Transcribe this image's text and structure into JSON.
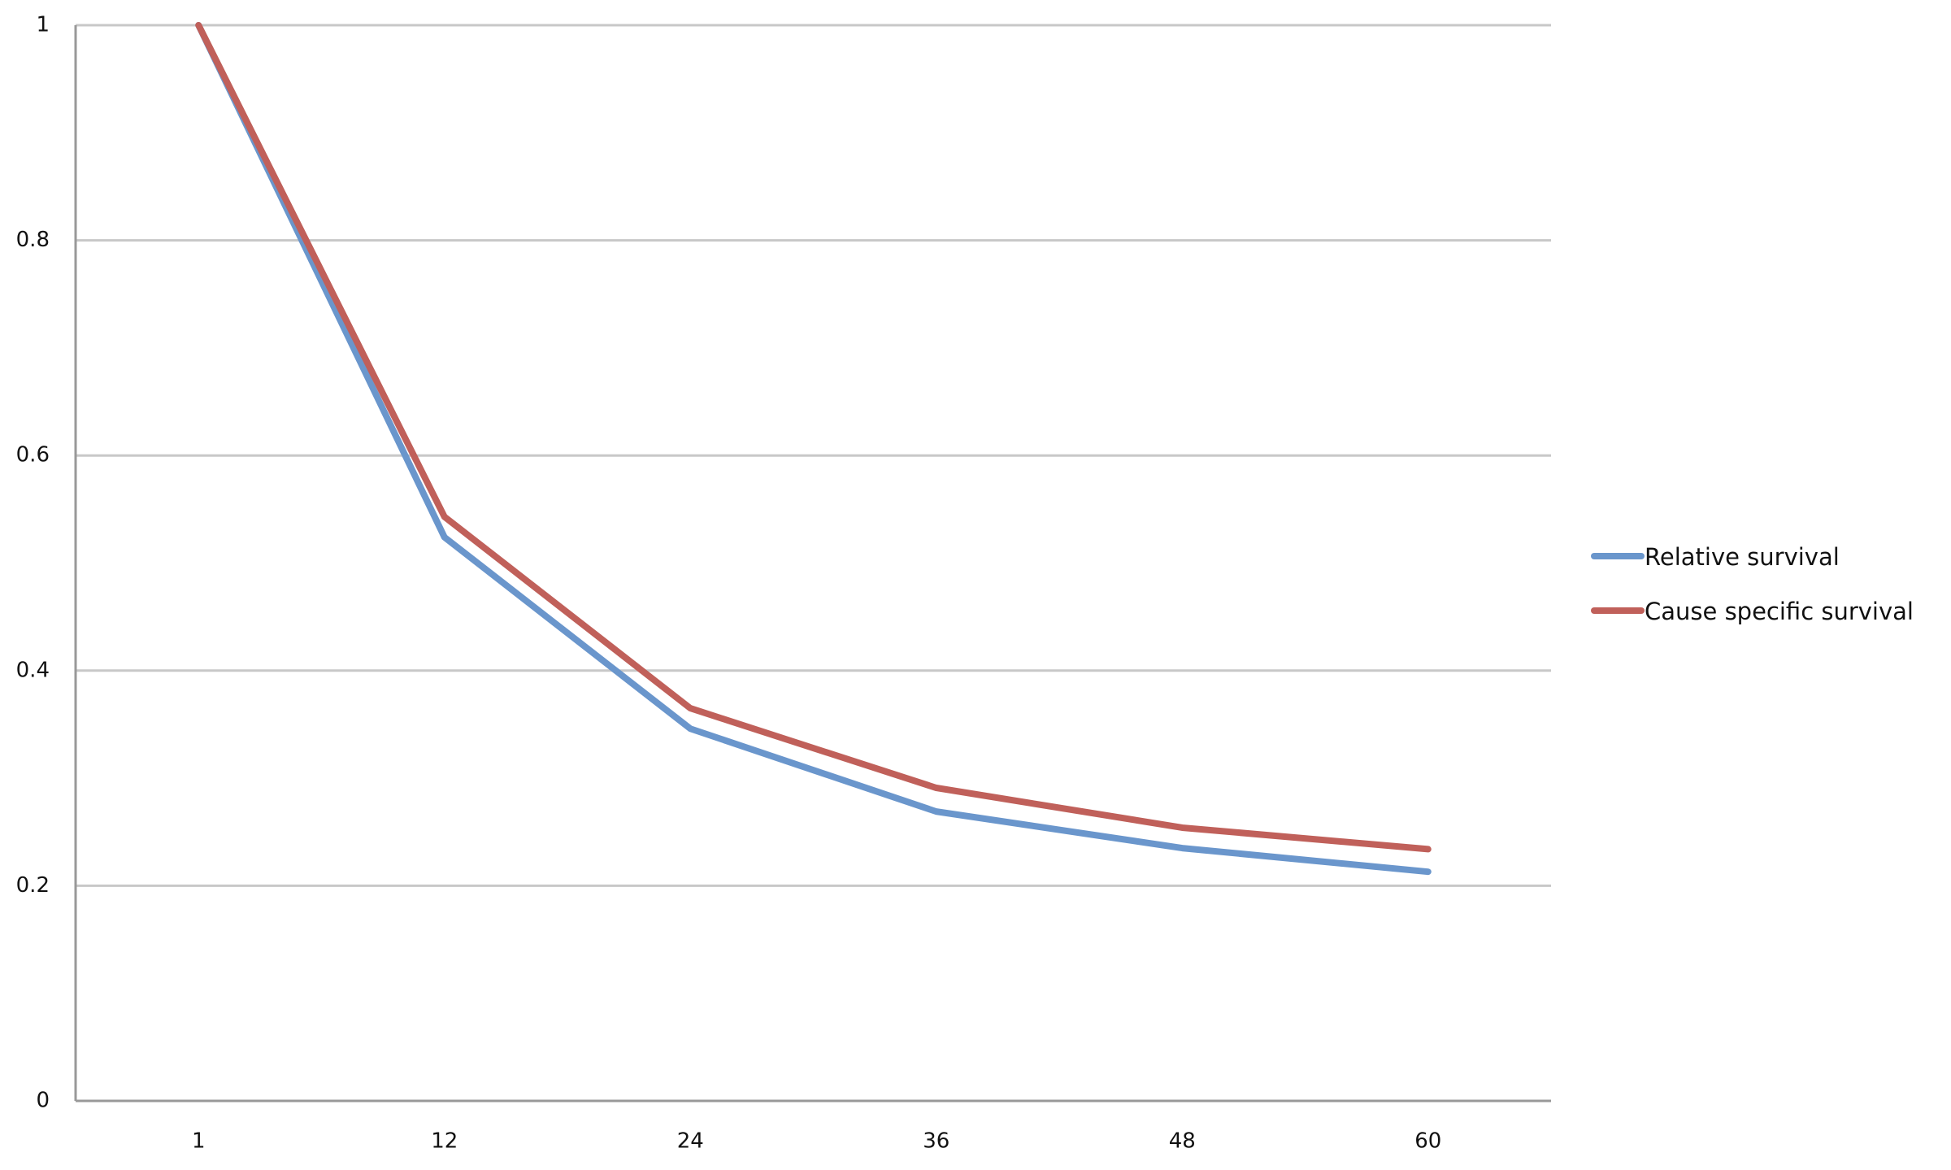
{
  "chart_data": {
    "type": "line",
    "categories": [
      "1",
      "12",
      "24",
      "36",
      "48",
      "60"
    ],
    "series": [
      {
        "name": "Relative survival",
        "color": "#6a96cc",
        "values": [
          1,
          0.524,
          0.346,
          0.269,
          0.235,
          0.213
        ]
      },
      {
        "name": "Cause specific survival",
        "color": "#c0605a",
        "values": [
          1,
          0.543,
          0.365,
          0.291,
          0.254,
          0.234
        ]
      }
    ],
    "ylim": [
      0,
      1
    ],
    "yticks": [
      0,
      0.2,
      0.4,
      0.6,
      0.8,
      1
    ],
    "grid": true,
    "legend": "right"
  }
}
